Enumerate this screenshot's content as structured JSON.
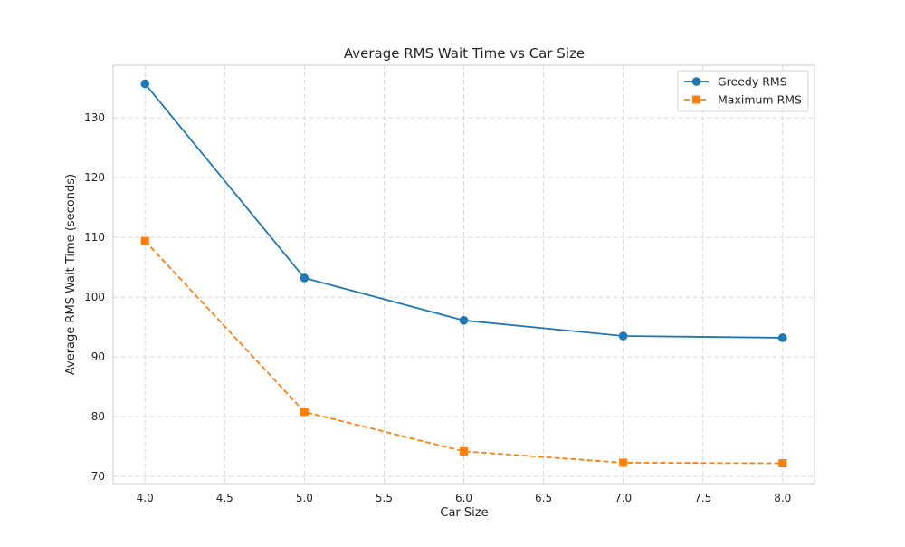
{
  "chart_data": {
    "type": "line",
    "title": "Average RMS Wait Time vs Car Size",
    "xlabel": "Car Size",
    "ylabel": "Average RMS Wait Time (seconds)",
    "xlim": [
      3.8,
      8.2
    ],
    "ylim": [
      68.8,
      138.8
    ],
    "xticks": [
      4.0,
      4.5,
      5.0,
      5.5,
      6.0,
      6.5,
      7.0,
      7.5,
      8.0
    ],
    "xtick_labels": [
      "4.0",
      "4.5",
      "5.0",
      "5.5",
      "6.0",
      "6.5",
      "7.0",
      "7.5",
      "8.0"
    ],
    "yticks": [
      70,
      80,
      90,
      100,
      110,
      120,
      130
    ],
    "ytick_labels": [
      "70",
      "80",
      "90",
      "100",
      "110",
      "120",
      "130"
    ],
    "grid": true,
    "legend_position": "top-right",
    "x": [
      4.0,
      5.0,
      6.0,
      7.0,
      8.0
    ],
    "series": [
      {
        "name": "Greedy RMS",
        "values": [
          135.7,
          103.2,
          96.1,
          93.5,
          93.2
        ],
        "color": "#1f77b4",
        "marker": "circle",
        "linestyle": "solid"
      },
      {
        "name": "Maximum RMS",
        "values": [
          109.4,
          80.8,
          74.2,
          72.3,
          72.2
        ],
        "color": "#ff7f0e",
        "marker": "square",
        "linestyle": "dashed"
      }
    ]
  }
}
